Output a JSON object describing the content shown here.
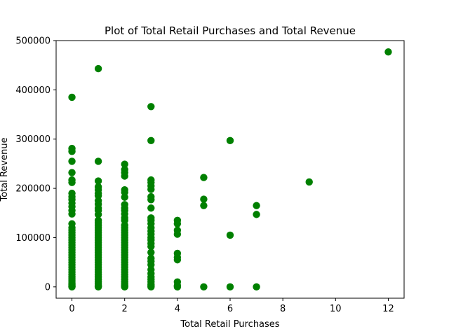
{
  "chart_data": {
    "type": "scatter",
    "title": "Plot of Total Retail Purchases and Total Revenue",
    "xlabel": "Total Retail Purchases",
    "ylabel": "Total Revenue",
    "xlim": [
      -0.6,
      12.6
    ],
    "ylim": [
      -23000,
      500000
    ],
    "x_ticks": [
      0,
      2,
      4,
      6,
      8,
      10,
      12
    ],
    "y_ticks": [
      0,
      100000,
      200000,
      300000,
      400000,
      500000
    ],
    "x_tick_labels": [
      "0",
      "2",
      "4",
      "6",
      "8",
      "10",
      "12"
    ],
    "y_tick_labels": [
      "0",
      "100000",
      "200000",
      "300000",
      "400000",
      "500000"
    ],
    "grid": false,
    "marker_color": "#008000",
    "points": [
      {
        "x": 0,
        "y": 0
      },
      {
        "x": 0,
        "y": 1000
      },
      {
        "x": 0,
        "y": 3000
      },
      {
        "x": 0,
        "y": 5000
      },
      {
        "x": 0,
        "y": 8000
      },
      {
        "x": 0,
        "y": 12000
      },
      {
        "x": 0,
        "y": 16000
      },
      {
        "x": 0,
        "y": 20000
      },
      {
        "x": 0,
        "y": 25000
      },
      {
        "x": 0,
        "y": 30000
      },
      {
        "x": 0,
        "y": 35000
      },
      {
        "x": 0,
        "y": 40000
      },
      {
        "x": 0,
        "y": 45000
      },
      {
        "x": 0,
        "y": 50000
      },
      {
        "x": 0,
        "y": 55000
      },
      {
        "x": 0,
        "y": 60000
      },
      {
        "x": 0,
        "y": 65000
      },
      {
        "x": 0,
        "y": 70000
      },
      {
        "x": 0,
        "y": 75000
      },
      {
        "x": 0,
        "y": 80000
      },
      {
        "x": 0,
        "y": 85000
      },
      {
        "x": 0,
        "y": 90000
      },
      {
        "x": 0,
        "y": 95000
      },
      {
        "x": 0,
        "y": 100000
      },
      {
        "x": 0,
        "y": 105000
      },
      {
        "x": 0,
        "y": 110000
      },
      {
        "x": 0,
        "y": 115000
      },
      {
        "x": 0,
        "y": 120000
      },
      {
        "x": 0,
        "y": 128000
      },
      {
        "x": 0,
        "y": 148000
      },
      {
        "x": 0,
        "y": 155000
      },
      {
        "x": 0,
        "y": 163000
      },
      {
        "x": 0,
        "y": 170000
      },
      {
        "x": 0,
        "y": 177000
      },
      {
        "x": 0,
        "y": 183000
      },
      {
        "x": 0,
        "y": 190000
      },
      {
        "x": 0,
        "y": 212000
      },
      {
        "x": 0,
        "y": 217000
      },
      {
        "x": 0,
        "y": 232000
      },
      {
        "x": 0,
        "y": 255000
      },
      {
        "x": 0,
        "y": 275000
      },
      {
        "x": 0,
        "y": 281000
      },
      {
        "x": 0,
        "y": 385000
      },
      {
        "x": 1,
        "y": 0
      },
      {
        "x": 1,
        "y": 1000
      },
      {
        "x": 1,
        "y": 3000
      },
      {
        "x": 1,
        "y": 6000
      },
      {
        "x": 1,
        "y": 10000
      },
      {
        "x": 1,
        "y": 15000
      },
      {
        "x": 1,
        "y": 20000
      },
      {
        "x": 1,
        "y": 25000
      },
      {
        "x": 1,
        "y": 30000
      },
      {
        "x": 1,
        "y": 35000
      },
      {
        "x": 1,
        "y": 40000
      },
      {
        "x": 1,
        "y": 45000
      },
      {
        "x": 1,
        "y": 50000
      },
      {
        "x": 1,
        "y": 55000
      },
      {
        "x": 1,
        "y": 60000
      },
      {
        "x": 1,
        "y": 65000
      },
      {
        "x": 1,
        "y": 70000
      },
      {
        "x": 1,
        "y": 75000
      },
      {
        "x": 1,
        "y": 80000
      },
      {
        "x": 1,
        "y": 85000
      },
      {
        "x": 1,
        "y": 90000
      },
      {
        "x": 1,
        "y": 95000
      },
      {
        "x": 1,
        "y": 100000
      },
      {
        "x": 1,
        "y": 105000
      },
      {
        "x": 1,
        "y": 110000
      },
      {
        "x": 1,
        "y": 115000
      },
      {
        "x": 1,
        "y": 120000
      },
      {
        "x": 1,
        "y": 125000
      },
      {
        "x": 1,
        "y": 130000
      },
      {
        "x": 1,
        "y": 135000
      },
      {
        "x": 1,
        "y": 147000
      },
      {
        "x": 1,
        "y": 155000
      },
      {
        "x": 1,
        "y": 160000
      },
      {
        "x": 1,
        "y": 168000
      },
      {
        "x": 1,
        "y": 175000
      },
      {
        "x": 1,
        "y": 185000
      },
      {
        "x": 1,
        "y": 190000
      },
      {
        "x": 1,
        "y": 197000
      },
      {
        "x": 1,
        "y": 203000
      },
      {
        "x": 1,
        "y": 215000
      },
      {
        "x": 1,
        "y": 255000
      },
      {
        "x": 1,
        "y": 443000
      },
      {
        "x": 2,
        "y": 0
      },
      {
        "x": 2,
        "y": 1000
      },
      {
        "x": 2,
        "y": 3000
      },
      {
        "x": 2,
        "y": 6000
      },
      {
        "x": 2,
        "y": 10000
      },
      {
        "x": 2,
        "y": 15000
      },
      {
        "x": 2,
        "y": 20000
      },
      {
        "x": 2,
        "y": 25000
      },
      {
        "x": 2,
        "y": 30000
      },
      {
        "x": 2,
        "y": 35000
      },
      {
        "x": 2,
        "y": 40000
      },
      {
        "x": 2,
        "y": 45000
      },
      {
        "x": 2,
        "y": 50000
      },
      {
        "x": 2,
        "y": 55000
      },
      {
        "x": 2,
        "y": 60000
      },
      {
        "x": 2,
        "y": 65000
      },
      {
        "x": 2,
        "y": 70000
      },
      {
        "x": 2,
        "y": 75000
      },
      {
        "x": 2,
        "y": 80000
      },
      {
        "x": 2,
        "y": 85000
      },
      {
        "x": 2,
        "y": 90000
      },
      {
        "x": 2,
        "y": 95000
      },
      {
        "x": 2,
        "y": 100000
      },
      {
        "x": 2,
        "y": 105000
      },
      {
        "x": 2,
        "y": 110000
      },
      {
        "x": 2,
        "y": 115000
      },
      {
        "x": 2,
        "y": 120000
      },
      {
        "x": 2,
        "y": 125000
      },
      {
        "x": 2,
        "y": 135000
      },
      {
        "x": 2,
        "y": 140000
      },
      {
        "x": 2,
        "y": 148000
      },
      {
        "x": 2,
        "y": 155000
      },
      {
        "x": 2,
        "y": 160000
      },
      {
        "x": 2,
        "y": 167000
      },
      {
        "x": 2,
        "y": 182000
      },
      {
        "x": 2,
        "y": 192000
      },
      {
        "x": 2,
        "y": 197000
      },
      {
        "x": 2,
        "y": 225000
      },
      {
        "x": 2,
        "y": 232000
      },
      {
        "x": 2,
        "y": 238000
      },
      {
        "x": 2,
        "y": 249000
      },
      {
        "x": 3,
        "y": 0
      },
      {
        "x": 3,
        "y": 2000
      },
      {
        "x": 3,
        "y": 5000
      },
      {
        "x": 3,
        "y": 10000
      },
      {
        "x": 3,
        "y": 15000
      },
      {
        "x": 3,
        "y": 20000
      },
      {
        "x": 3,
        "y": 27000
      },
      {
        "x": 3,
        "y": 35000
      },
      {
        "x": 3,
        "y": 45000
      },
      {
        "x": 3,
        "y": 52000
      },
      {
        "x": 3,
        "y": 58000
      },
      {
        "x": 3,
        "y": 70000
      },
      {
        "x": 3,
        "y": 82000
      },
      {
        "x": 3,
        "y": 88000
      },
      {
        "x": 3,
        "y": 95000
      },
      {
        "x": 3,
        "y": 100000
      },
      {
        "x": 3,
        "y": 107000
      },
      {
        "x": 3,
        "y": 113000
      },
      {
        "x": 3,
        "y": 120000
      },
      {
        "x": 3,
        "y": 128000
      },
      {
        "x": 3,
        "y": 135000
      },
      {
        "x": 3,
        "y": 140000
      },
      {
        "x": 3,
        "y": 160000
      },
      {
        "x": 3,
        "y": 177000
      },
      {
        "x": 3,
        "y": 183000
      },
      {
        "x": 3,
        "y": 198000
      },
      {
        "x": 3,
        "y": 205000
      },
      {
        "x": 3,
        "y": 212000
      },
      {
        "x": 3,
        "y": 217000
      },
      {
        "x": 3,
        "y": 297000
      },
      {
        "x": 3,
        "y": 366000
      },
      {
        "x": 4,
        "y": 0
      },
      {
        "x": 4,
        "y": 3000
      },
      {
        "x": 4,
        "y": 10000
      },
      {
        "x": 4,
        "y": 55000
      },
      {
        "x": 4,
        "y": 60000
      },
      {
        "x": 4,
        "y": 68000
      },
      {
        "x": 4,
        "y": 107000
      },
      {
        "x": 4,
        "y": 115000
      },
      {
        "x": 4,
        "y": 128000
      },
      {
        "x": 4,
        "y": 135000
      },
      {
        "x": 5,
        "y": 0
      },
      {
        "x": 5,
        "y": 165000
      },
      {
        "x": 5,
        "y": 178000
      },
      {
        "x": 5,
        "y": 222000
      },
      {
        "x": 6,
        "y": 0
      },
      {
        "x": 6,
        "y": 105000
      },
      {
        "x": 6,
        "y": 297000
      },
      {
        "x": 7,
        "y": 0
      },
      {
        "x": 7,
        "y": 147000
      },
      {
        "x": 7,
        "y": 165000
      },
      {
        "x": 9,
        "y": 213000
      },
      {
        "x": 12,
        "y": 477000
      }
    ]
  }
}
